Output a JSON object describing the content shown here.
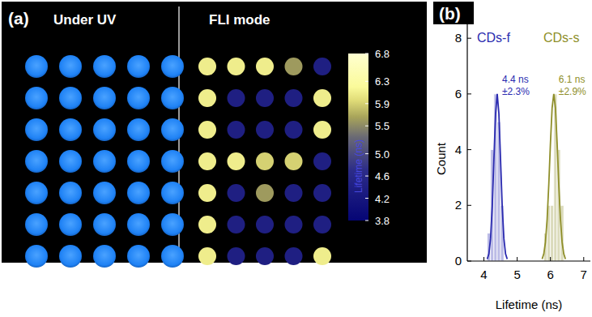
{
  "chart_data": [
    {
      "type": "heatmap",
      "panel_label": "(a)",
      "uv_title": "Under UV",
      "title": "FLI mode",
      "tick_labels": false,
      "cells": [
        [
          6.1,
          6.1,
          6.1,
          5.6,
          4.4
        ],
        [
          6.1,
          4.4,
          4.4,
          4.4,
          6.1
        ],
        [
          6.1,
          4.4,
          4.4,
          4.4,
          6.1
        ],
        [
          6.1,
          6.1,
          5.9,
          5.9,
          4.4
        ],
        [
          6.1,
          4.4,
          5.6,
          4.4,
          4.4
        ],
        [
          6.1,
          4.4,
          4.4,
          4.4,
          4.4
        ],
        [
          6.1,
          4.4,
          4.4,
          4.4,
          6.1
        ]
      ],
      "colorbar_label": "Lifetime (ns)",
      "colorbar_range": [
        3.8,
        6.8
      ],
      "colorbar_ticks": [
        6.8,
        6.3,
        5.9,
        5.5,
        {
          "value": 5,
          "label": "5.0"
        },
        4.6,
        4.2,
        3.8
      ]
    },
    {
      "type": "histogram",
      "panel_label": "(b)",
      "xlabel": "Lifetime (ns)",
      "ylabel": "Count",
      "xlim": [
        3.5,
        7.2
      ],
      "ylim": [
        0,
        8.5
      ],
      "xticks": [
        4,
        5,
        6,
        7
      ],
      "yticks": [
        0,
        2,
        4,
        6,
        8
      ],
      "grid": false,
      "legend": "top",
      "series": [
        {
          "name": "CDs-f",
          "color": "#2b2bb0",
          "bins": [
            4.1,
            4.2,
            4.3,
            4.4,
            4.5,
            4.6
          ],
          "values": [
            1,
            4,
            6,
            5,
            2
          ],
          "fit_x": [
            4.1,
            4.15,
            4.2,
            4.25,
            4.3,
            4.35,
            4.4,
            4.45,
            4.5,
            4.55,
            4.6,
            4.65,
            4.7
          ],
          "fit_values": [
            0.07,
            0.26,
            0.81,
            1.95,
            3.64,
            5.29,
            6,
            5.29,
            3.64,
            1.95,
            0.81,
            0.26,
            0.07
          ],
          "peak_label": "4.4 ns",
          "spread_label": "±2.3%"
        },
        {
          "name": "CDs-s",
          "color": "#8f8f2a",
          "bins": [
            5.8,
            5.9,
            6.0,
            6.1,
            6.2,
            6.3,
            6.4
          ],
          "values": [
            1,
            2,
            2,
            6,
            4,
            2
          ],
          "fit_x": [
            5.75,
            5.8,
            5.85,
            5.9,
            5.95,
            6.0,
            6.05,
            6.1,
            6.15,
            6.2,
            6.25,
            6.3,
            6.35,
            6.4,
            6.45
          ],
          "fit_values": [
            0.07,
            0.26,
            0.68,
            1.5,
            2.75,
            4.24,
            5.5,
            6,
            5.5,
            4.24,
            2.75,
            1.5,
            0.68,
            0.26,
            0.07
          ],
          "peak_label": "6.1 ns",
          "spread_label": "±2.9%"
        }
      ]
    }
  ]
}
